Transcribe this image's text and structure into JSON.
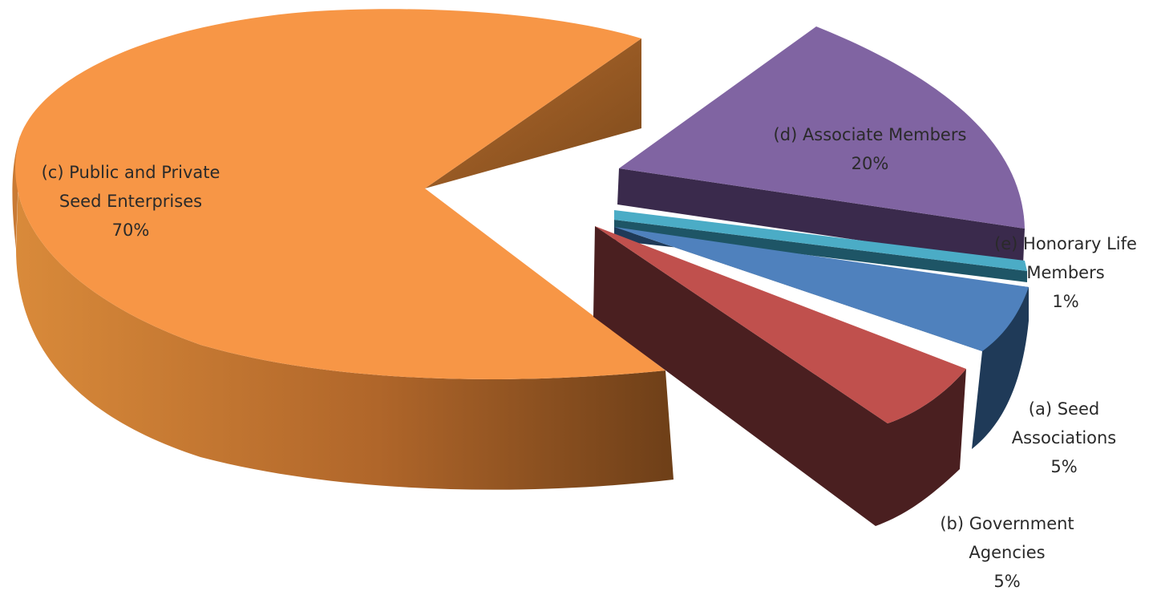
{
  "chart_data": {
    "type": "pie",
    "style": "3d-exploded",
    "slices": [
      {
        "id": "a",
        "label": [
          "(a) Seed",
          "Associations"
        ],
        "value": 5,
        "value_label": "5%",
        "color": "#4f81bd"
      },
      {
        "id": "b",
        "label": [
          "(b) Government",
          "Agencies"
        ],
        "value": 5,
        "value_label": "5%",
        "color": "#c0504d"
      },
      {
        "id": "c",
        "label": [
          "(c) Public and  Private",
          "Seed Enterprises"
        ],
        "value": 70,
        "value_label": "70%",
        "color": "#f79646"
      },
      {
        "id": "d",
        "label": [
          "(d) Associate Members"
        ],
        "value": 20,
        "value_label": "20%",
        "color": "#8064a2"
      },
      {
        "id": "e",
        "label": [
          "(e) Honorary Life",
          "Members"
        ],
        "value": 1,
        "value_label": "1%",
        "color": "#4bacc6"
      }
    ]
  }
}
